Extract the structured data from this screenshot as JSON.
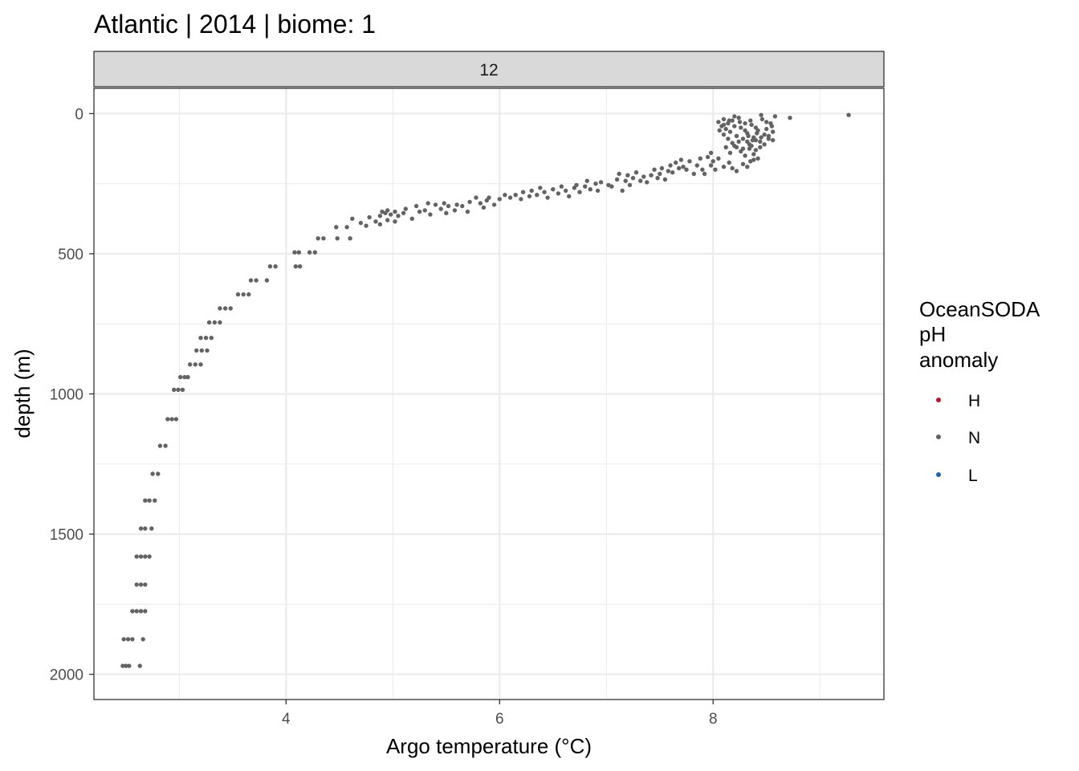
{
  "title": "Atlantic | 2014 | biome: 1",
  "facet_label": "12",
  "colors": {
    "H": "#b2182b",
    "N": "#636363",
    "L": "#2166ac",
    "grid": "#ebebeb",
    "strip_bg": "#d9d9d9",
    "panel_border": "#333333"
  },
  "legend": {
    "title_lines": [
      "OceanSODA",
      "pH",
      "anomaly"
    ],
    "items": [
      {
        "label": "H",
        "color": "#b2182b"
      },
      {
        "label": "N",
        "color": "#636363"
      },
      {
        "label": "L",
        "color": "#2166ac"
      }
    ]
  },
  "chart_data": {
    "type": "scatter",
    "title": "Atlantic | 2014 | biome: 1",
    "xlabel": "Argo temperature (°C)",
    "ylabel": "depth (m)",
    "xlim": [
      2.2,
      9.6
    ],
    "ylim": [
      2090,
      -90
    ],
    "y_reversed": true,
    "x_ticks": [
      4,
      6,
      8
    ],
    "y_ticks": [
      0,
      500,
      1000,
      1500,
      2000
    ],
    "grid": true,
    "legend_position": "right",
    "series": [
      {
        "name": "N",
        "color": "#636363",
        "points": [
          [
            2.47,
            1970
          ],
          [
            2.5,
            1970
          ],
          [
            2.53,
            1970
          ],
          [
            2.63,
            1970
          ],
          [
            2.48,
            1875
          ],
          [
            2.52,
            1875
          ],
          [
            2.56,
            1875
          ],
          [
            2.66,
            1875
          ],
          [
            2.56,
            1775
          ],
          [
            2.6,
            1775
          ],
          [
            2.64,
            1775
          ],
          [
            2.68,
            1775
          ],
          [
            2.6,
            1680
          ],
          [
            2.64,
            1680
          ],
          [
            2.68,
            1680
          ],
          [
            2.6,
            1580
          ],
          [
            2.64,
            1580
          ],
          [
            2.68,
            1580
          ],
          [
            2.72,
            1580
          ],
          [
            2.64,
            1480
          ],
          [
            2.68,
            1480
          ],
          [
            2.74,
            1480
          ],
          [
            2.68,
            1380
          ],
          [
            2.72,
            1380
          ],
          [
            2.77,
            1380
          ],
          [
            2.75,
            1285
          ],
          [
            2.8,
            1285
          ],
          [
            2.82,
            1185
          ],
          [
            2.87,
            1185
          ],
          [
            2.89,
            1090
          ],
          [
            2.93,
            1090
          ],
          [
            2.97,
            1090
          ],
          [
            2.95,
            985
          ],
          [
            2.99,
            985
          ],
          [
            3.03,
            985
          ],
          [
            3.01,
            940
          ],
          [
            3.05,
            940
          ],
          [
            3.08,
            940
          ],
          [
            3.1,
            895
          ],
          [
            3.15,
            895
          ],
          [
            3.2,
            895
          ],
          [
            3.16,
            845
          ],
          [
            3.21,
            845
          ],
          [
            3.26,
            845
          ],
          [
            3.2,
            800
          ],
          [
            3.25,
            800
          ],
          [
            3.3,
            800
          ],
          [
            3.28,
            745
          ],
          [
            3.33,
            745
          ],
          [
            3.38,
            745
          ],
          [
            3.38,
            695
          ],
          [
            3.43,
            695
          ],
          [
            3.48,
            695
          ],
          [
            3.55,
            645
          ],
          [
            3.6,
            645
          ],
          [
            3.65,
            645
          ],
          [
            3.67,
            595
          ],
          [
            3.72,
            595
          ],
          [
            3.82,
            595
          ],
          [
            3.85,
            545
          ],
          [
            3.9,
            545
          ],
          [
            4.09,
            545
          ],
          [
            4.13,
            545
          ],
          [
            4.08,
            495
          ],
          [
            4.12,
            495
          ],
          [
            4.22,
            495
          ],
          [
            4.27,
            495
          ],
          [
            4.3,
            445
          ],
          [
            4.35,
            445
          ],
          [
            4.48,
            445
          ],
          [
            4.6,
            445
          ],
          [
            4.47,
            405
          ],
          [
            4.57,
            405
          ],
          [
            4.62,
            375
          ],
          [
            4.7,
            390
          ],
          [
            4.75,
            400
          ],
          [
            4.78,
            370
          ],
          [
            4.84,
            385
          ],
          [
            4.88,
            365
          ],
          [
            4.93,
            355
          ],
          [
            4.9,
            350
          ],
          [
            4.95,
            345
          ],
          [
            5.02,
            350
          ],
          [
            4.98,
            360
          ],
          [
            5.05,
            365
          ],
          [
            5.1,
            355
          ],
          [
            5.12,
            340
          ],
          [
            4.95,
            380
          ],
          [
            5.02,
            385
          ],
          [
            4.88,
            395
          ],
          [
            5.18,
            375
          ],
          [
            5.25,
            350
          ],
          [
            5.3,
            345
          ],
          [
            5.35,
            360
          ],
          [
            5.22,
            330
          ],
          [
            5.33,
            320
          ],
          [
            5.4,
            325
          ],
          [
            5.45,
            340
          ],
          [
            5.5,
            355
          ],
          [
            5.52,
            330
          ],
          [
            5.48,
            320
          ],
          [
            5.58,
            345
          ],
          [
            5.6,
            325
          ],
          [
            5.65,
            330
          ],
          [
            5.7,
            350
          ],
          [
            5.72,
            315
          ],
          [
            5.78,
            300
          ],
          [
            5.82,
            320
          ],
          [
            5.85,
            335
          ],
          [
            5.88,
            310
          ],
          [
            5.9,
            300
          ],
          [
            5.95,
            325
          ],
          [
            6.0,
            305
          ],
          [
            6.05,
            290
          ],
          [
            6.1,
            300
          ],
          [
            6.15,
            290
          ],
          [
            6.2,
            305
          ],
          [
            6.22,
            280
          ],
          [
            6.28,
            295
          ],
          [
            6.3,
            275
          ],
          [
            6.35,
            290
          ],
          [
            6.38,
            265
          ],
          [
            6.42,
            280
          ],
          [
            6.45,
            300
          ],
          [
            6.5,
            270
          ],
          [
            6.55,
            285
          ],
          [
            6.58,
            260
          ],
          [
            6.62,
            275
          ],
          [
            6.65,
            295
          ],
          [
            6.7,
            265
          ],
          [
            6.72,
            255
          ],
          [
            6.75,
            280
          ],
          [
            6.8,
            260
          ],
          [
            6.82,
            240
          ],
          [
            6.85,
            270
          ],
          [
            6.9,
            250
          ],
          [
            6.92,
            275
          ],
          [
            6.95,
            245
          ],
          [
            7.02,
            255
          ],
          [
            7.05,
            260
          ],
          [
            7.1,
            235
          ],
          [
            7.12,
            215
          ],
          [
            7.15,
            275
          ],
          [
            7.18,
            240
          ],
          [
            7.2,
            220
          ],
          [
            7.22,
            255
          ],
          [
            7.25,
            230
          ],
          [
            7.28,
            210
          ],
          [
            7.32,
            240
          ],
          [
            7.35,
            225
          ],
          [
            7.38,
            245
          ],
          [
            7.42,
            220
          ],
          [
            7.45,
            200
          ],
          [
            7.48,
            230
          ],
          [
            7.5,
            215
          ],
          [
            7.52,
            195
          ],
          [
            7.55,
            235
          ],
          [
            7.58,
            205
          ],
          [
            7.6,
            185
          ],
          [
            7.62,
            210
          ],
          [
            7.65,
            175
          ],
          [
            7.68,
            195
          ],
          [
            7.7,
            165
          ],
          [
            7.72,
            190
          ],
          [
            7.75,
            200
          ],
          [
            7.78,
            170
          ],
          [
            7.82,
            215
          ],
          [
            7.85,
            185
          ],
          [
            7.88,
            160
          ],
          [
            7.9,
            200
          ],
          [
            7.92,
            215
          ],
          [
            7.95,
            155
          ],
          [
            7.98,
            185
          ],
          [
            8.0,
            170
          ],
          [
            8.02,
            200
          ],
          [
            7.98,
            140
          ],
          [
            8.05,
            160
          ],
          [
            8.1,
            190
          ],
          [
            8.15,
            175
          ],
          [
            8.18,
            195
          ],
          [
            8.22,
            205
          ],
          [
            8.28,
            180
          ],
          [
            8.32,
            190
          ],
          [
            8.35,
            170
          ],
          [
            8.38,
            165
          ],
          [
            8.05,
            30
          ],
          [
            8.08,
            45
          ],
          [
            8.1,
            20
          ],
          [
            8.12,
            55
          ],
          [
            8.14,
            35
          ],
          [
            8.16,
            65
          ],
          [
            8.18,
            25
          ],
          [
            8.2,
            45
          ],
          [
            8.22,
            80
          ],
          [
            8.24,
            15
          ],
          [
            8.26,
            50
          ],
          [
            8.28,
            90
          ],
          [
            8.3,
            35
          ],
          [
            8.32,
            70
          ],
          [
            8.34,
            110
          ],
          [
            8.36,
            40
          ],
          [
            8.38,
            85
          ],
          [
            8.4,
            130
          ],
          [
            8.42,
            60
          ],
          [
            8.44,
            100
          ],
          [
            8.46,
            20
          ],
          [
            8.48,
            75
          ],
          [
            8.5,
            55
          ],
          [
            8.52,
            90
          ],
          [
            8.54,
            35
          ],
          [
            8.56,
            65
          ],
          [
            8.58,
            10
          ],
          [
            8.06,
            60
          ],
          [
            8.1,
            75
          ],
          [
            8.14,
            90
          ],
          [
            8.18,
            105
          ],
          [
            8.22,
            120
          ],
          [
            8.26,
            135
          ],
          [
            8.3,
            150
          ],
          [
            8.34,
            125
          ],
          [
            8.38,
            145
          ],
          [
            8.42,
            160
          ],
          [
            8.12,
            120
          ],
          [
            8.16,
            140
          ],
          [
            8.2,
            115
          ],
          [
            8.24,
            100
          ],
          [
            8.28,
            125
          ],
          [
            8.32,
            100
          ],
          [
            8.36,
            115
          ],
          [
            8.4,
            95
          ],
          [
            8.44,
            120
          ],
          [
            8.48,
            110
          ],
          [
            8.52,
            80
          ],
          [
            8.56,
            95
          ],
          [
            8.1,
            40
          ],
          [
            8.15,
            25
          ],
          [
            8.2,
            10
          ],
          [
            8.25,
            30
          ],
          [
            8.3,
            60
          ],
          [
            8.35,
            25
          ],
          [
            8.4,
            50
          ],
          [
            8.45,
            5
          ],
          [
            8.5,
            30
          ],
          [
            8.55,
            45
          ],
          [
            8.33,
            80
          ],
          [
            8.37,
            95
          ],
          [
            8.41,
            70
          ],
          [
            8.45,
            85
          ],
          [
            8.72,
            15
          ],
          [
            9.27,
            5
          ]
        ]
      }
    ]
  }
}
